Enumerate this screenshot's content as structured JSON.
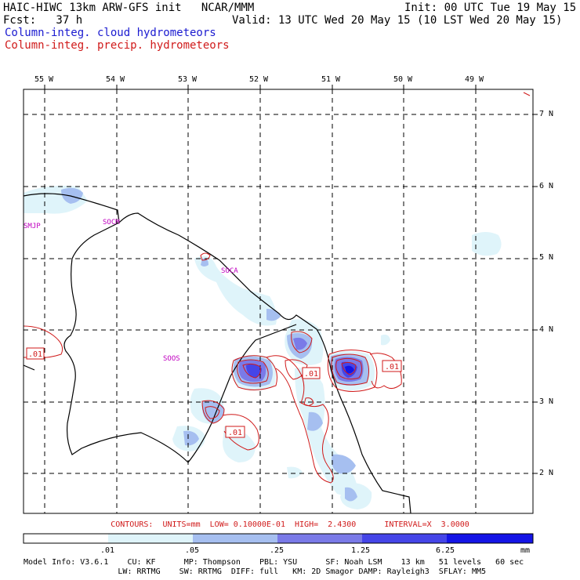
{
  "header": {
    "left_line1": "HAIC-HIWC 13km ARW-GFS init   NCAR/MMM",
    "left_line2": "Fcst:   37 h",
    "right_line1": "Init: 00 UTC Tue 19 May 15",
    "right_line2": "Valid: 13 UTC Wed 20 May 15 (10 LST Wed 20 May 15)",
    "field_cloud": "Column-integ. cloud hydrometeors",
    "field_precip": "Column-integ. precip. hydrometeors"
  },
  "map": {
    "longitude_labels": [
      "55 W",
      "54 W",
      "53 W",
      "52 W",
      "51 W",
      "50 W",
      "49 W"
    ],
    "latitude_labels": [
      "7 N",
      "6 N",
      "5 N",
      "4 N",
      "3 N",
      "2 N"
    ],
    "stations": [
      "SMJP",
      "SOCM",
      "SOCA",
      "SOOS"
    ],
    "contour_labels": [
      ".01",
      ".01",
      ".01",
      ".01"
    ],
    "colors": {
      "coast": "#000000",
      "grid": "#000000",
      "precip_contour": "#d01a1a",
      "station": "#c000c0"
    }
  },
  "contour_info": "CONTOURS:  UNITS=mm  LOW= 0.10000E-01  HIGH=  2.4300      INTERVAL=X  3.0000",
  "legend": {
    "unit": "mm",
    "bins": [
      {
        "label": ".01",
        "color": "#ffffff"
      },
      {
        "label": ".05",
        "color": "#dff4fa"
      },
      {
        "label": ".25",
        "color": "#a6bff0"
      },
      {
        "label": "1.25",
        "color": "#7a7ae8"
      },
      {
        "label": "6.25",
        "color": "#4545e8"
      },
      {
        "label": "",
        "color": "#1414e6"
      }
    ]
  },
  "model_info": {
    "line1": "Model Info: V3.6.1    CU: KF      MP: Thompson    PBL: YSU      SF: Noah LSM    13 km   51 levels   60 sec",
    "line2": "                    LW: RRTMG    SW: RRTMG  DIFF: full   KM: 2D Smagor DAMP: Rayleigh3  SFLAY: MM5"
  }
}
